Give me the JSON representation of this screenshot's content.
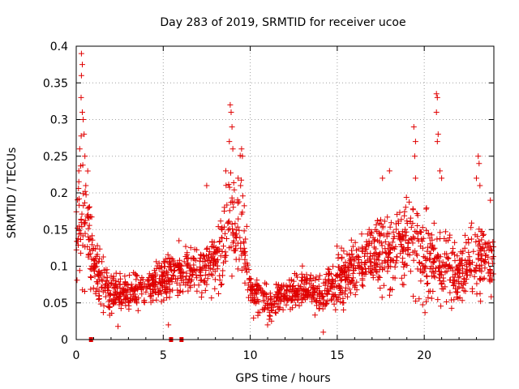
{
  "chart_data": {
    "type": "scatter",
    "title": "Day 283 of 2019, SRMTID for receiver ucoe",
    "xlabel": "GPS time / hours",
    "ylabel": "SRMTID / TECUs",
    "xlim": [
      0,
      24
    ],
    "ylim": [
      0,
      0.4
    ],
    "xticks": [
      0,
      5,
      10,
      15,
      20
    ],
    "xtick_labels": [
      "0",
      "5",
      "10",
      "15",
      "20"
    ],
    "yticks": [
      0,
      0.05,
      0.1,
      0.15,
      0.2,
      0.25,
      0.3,
      0.35,
      0.4
    ],
    "ytick_labels": [
      "0",
      "0.05",
      "0.1",
      "0.15",
      "0.2",
      "0.25",
      "0.3",
      "0.35",
      "0.4"
    ],
    "grid": true,
    "marker": "plus",
    "color": "#e00000",
    "zero_markers_x": [
      0.85,
      5.45,
      6.05
    ],
    "seed": 283,
    "points_per_hour": 75,
    "envelope": [
      {
        "x": 0.0,
        "center": 0.15,
        "spread": 0.05
      },
      {
        "x": 0.5,
        "center": 0.17,
        "spread": 0.1
      },
      {
        "x": 1.0,
        "center": 0.1,
        "spread": 0.04
      },
      {
        "x": 2.0,
        "center": 0.06,
        "spread": 0.025
      },
      {
        "x": 3.0,
        "center": 0.065,
        "spread": 0.02
      },
      {
        "x": 4.0,
        "center": 0.07,
        "spread": 0.02
      },
      {
        "x": 5.0,
        "center": 0.08,
        "spread": 0.025
      },
      {
        "x": 6.0,
        "center": 0.095,
        "spread": 0.025
      },
      {
        "x": 7.0,
        "center": 0.09,
        "spread": 0.03
      },
      {
        "x": 8.0,
        "center": 0.11,
        "spread": 0.04
      },
      {
        "x": 8.8,
        "center": 0.16,
        "spread": 0.07
      },
      {
        "x": 9.5,
        "center": 0.16,
        "spread": 0.06
      },
      {
        "x": 10.0,
        "center": 0.07,
        "spread": 0.025
      },
      {
        "x": 11.0,
        "center": 0.05,
        "spread": 0.02
      },
      {
        "x": 12.0,
        "center": 0.06,
        "spread": 0.02
      },
      {
        "x": 13.0,
        "center": 0.07,
        "spread": 0.025
      },
      {
        "x": 14.0,
        "center": 0.06,
        "spread": 0.025
      },
      {
        "x": 15.0,
        "center": 0.08,
        "spread": 0.03
      },
      {
        "x": 16.0,
        "center": 0.1,
        "spread": 0.035
      },
      {
        "x": 17.5,
        "center": 0.12,
        "spread": 0.045
      },
      {
        "x": 19.0,
        "center": 0.13,
        "spread": 0.05
      },
      {
        "x": 20.0,
        "center": 0.11,
        "spread": 0.05
      },
      {
        "x": 21.0,
        "center": 0.1,
        "spread": 0.045
      },
      {
        "x": 22.0,
        "center": 0.09,
        "spread": 0.035
      },
      {
        "x": 23.0,
        "center": 0.11,
        "spread": 0.04
      },
      {
        "x": 24.0,
        "center": 0.1,
        "spread": 0.04
      }
    ],
    "spikes": [
      {
        "x": 0.3,
        "y": 0.39
      },
      {
        "x": 0.35,
        "y": 0.375
      },
      {
        "x": 0.3,
        "y": 0.36
      },
      {
        "x": 0.28,
        "y": 0.33
      },
      {
        "x": 0.35,
        "y": 0.31
      },
      {
        "x": 0.4,
        "y": 0.3
      },
      {
        "x": 0.45,
        "y": 0.28
      },
      {
        "x": 0.2,
        "y": 0.26
      },
      {
        "x": 0.5,
        "y": 0.25
      },
      {
        "x": 0.15,
        "y": 0.23
      },
      {
        "x": 0.55,
        "y": 0.21
      },
      {
        "x": 8.85,
        "y": 0.32
      },
      {
        "x": 8.9,
        "y": 0.31
      },
      {
        "x": 8.95,
        "y": 0.29
      },
      {
        "x": 8.8,
        "y": 0.27
      },
      {
        "x": 9.0,
        "y": 0.26
      },
      {
        "x": 9.5,
        "y": 0.26
      },
      {
        "x": 9.55,
        "y": 0.25
      },
      {
        "x": 8.6,
        "y": 0.23
      },
      {
        "x": 9.3,
        "y": 0.22
      },
      {
        "x": 7.5,
        "y": 0.21
      },
      {
        "x": 19.4,
        "y": 0.29
      },
      {
        "x": 19.5,
        "y": 0.27
      },
      {
        "x": 19.45,
        "y": 0.25
      },
      {
        "x": 19.5,
        "y": 0.22
      },
      {
        "x": 20.7,
        "y": 0.335
      },
      {
        "x": 20.75,
        "y": 0.33
      },
      {
        "x": 20.7,
        "y": 0.31
      },
      {
        "x": 20.8,
        "y": 0.28
      },
      {
        "x": 20.75,
        "y": 0.27
      },
      {
        "x": 20.9,
        "y": 0.23
      },
      {
        "x": 21.0,
        "y": 0.22
      },
      {
        "x": 17.6,
        "y": 0.22
      },
      {
        "x": 18.0,
        "y": 0.23
      },
      {
        "x": 23.1,
        "y": 0.25
      },
      {
        "x": 23.15,
        "y": 0.24
      },
      {
        "x": 23.0,
        "y": 0.22
      },
      {
        "x": 23.2,
        "y": 0.21
      },
      {
        "x": 23.8,
        "y": 0.19
      },
      {
        "x": 2.4,
        "y": 0.018
      },
      {
        "x": 14.2,
        "y": 0.01
      },
      {
        "x": 11.0,
        "y": 0.02
      },
      {
        "x": 5.3,
        "y": 0.02
      }
    ]
  }
}
